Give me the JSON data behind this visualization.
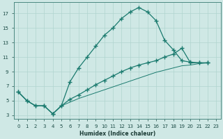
{
  "xlabel": "Humidex (Indice chaleur)",
  "xlim": [
    -0.5,
    23.5
  ],
  "ylim": [
    2.5,
    18.5
  ],
  "xticks": [
    0,
    1,
    2,
    3,
    4,
    5,
    6,
    7,
    8,
    9,
    10,
    11,
    12,
    13,
    14,
    15,
    16,
    17,
    18,
    19,
    20,
    21,
    22,
    23
  ],
  "yticks": [
    3,
    5,
    7,
    9,
    11,
    13,
    15,
    17
  ],
  "bg_color": "#cfe8e5",
  "line_color": "#1a7a6e",
  "grid_color": "#b0d4cf",
  "curve1_x": [
    0,
    1,
    2,
    3,
    4,
    5,
    6,
    7,
    8,
    9,
    10,
    11,
    12,
    13,
    14,
    15,
    16,
    17,
    18,
    19,
    20,
    21,
    22
  ],
  "curve1_y": [
    6.2,
    5.0,
    4.3,
    4.3,
    3.2,
    4.3,
    7.6,
    9.5,
    11.0,
    12.5,
    14.0,
    15.0,
    16.3,
    17.2,
    17.8,
    17.2,
    16.0,
    13.3,
    12.0,
    10.5,
    10.3,
    10.2,
    10.2
  ],
  "curve2_x": [
    0,
    1,
    2,
    3,
    4,
    5,
    6,
    7,
    8,
    9,
    10,
    11,
    12,
    13,
    14,
    15,
    16,
    17,
    18,
    19,
    20,
    21,
    22
  ],
  "curve2_y": [
    6.2,
    5.0,
    4.3,
    4.3,
    3.2,
    4.3,
    5.2,
    5.8,
    6.5,
    7.2,
    7.8,
    8.4,
    9.0,
    9.5,
    9.9,
    10.2,
    10.5,
    11.0,
    11.4,
    12.2,
    10.2,
    10.2,
    10.2
  ],
  "curve3_x": [
    0,
    1,
    2,
    3,
    4,
    5,
    6,
    7,
    8,
    9,
    10,
    11,
    12,
    13,
    14,
    15,
    16,
    17,
    18,
    19,
    20,
    21,
    22
  ],
  "curve3_y": [
    6.2,
    5.0,
    4.3,
    4.3,
    3.2,
    4.3,
    4.8,
    5.3,
    5.7,
    6.1,
    6.5,
    6.9,
    7.3,
    7.7,
    8.1,
    8.5,
    8.9,
    9.2,
    9.5,
    9.8,
    9.9,
    10.1,
    10.2
  ]
}
